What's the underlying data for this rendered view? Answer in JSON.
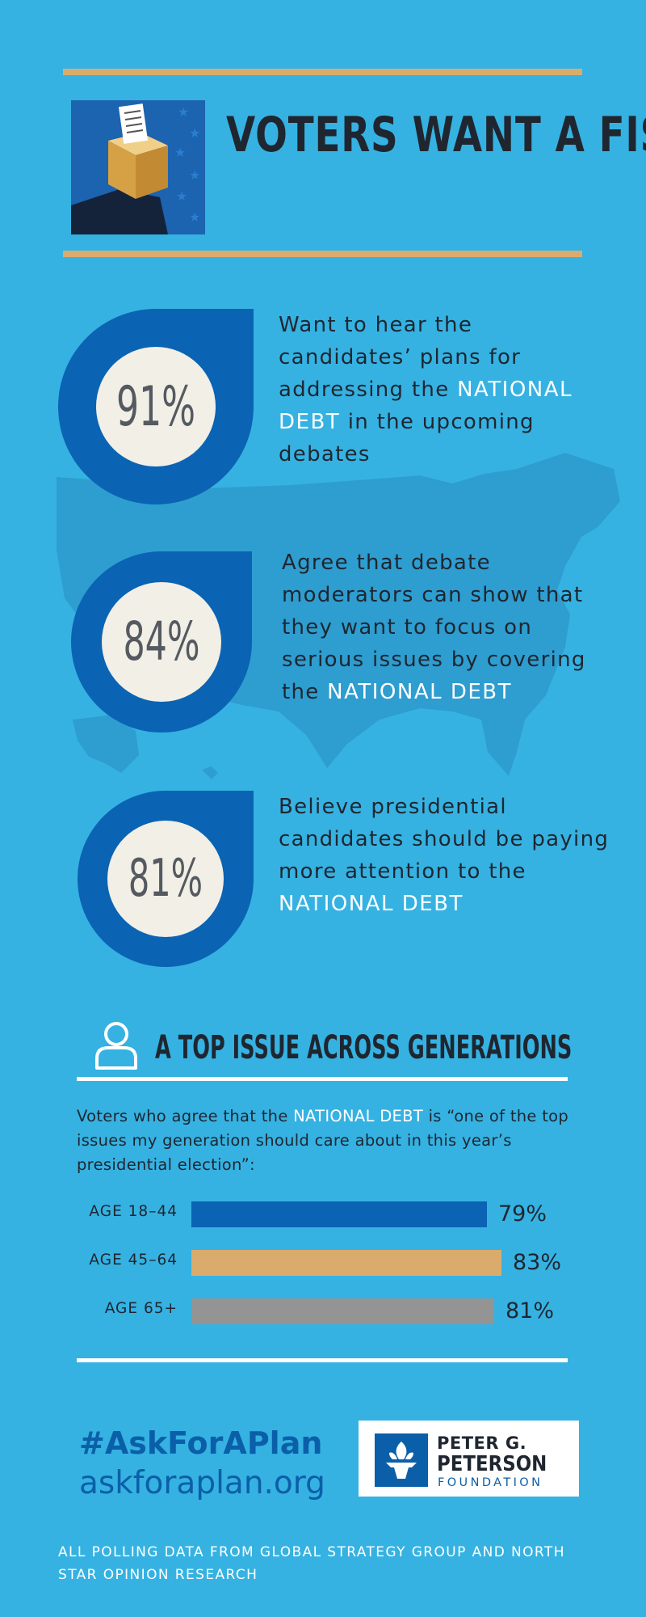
{
  "header": {
    "title": "VOTERS WANT A FISCAL PLAN",
    "ballot_icon": "ballot-box-icon"
  },
  "stats": [
    {
      "percent": "91%",
      "text_before": "Want to hear the candidates’ plans for addressing the ",
      "highlight": "NATIONAL DEBT",
      "text_after": " in the upcoming debates"
    },
    {
      "percent": "84%",
      "text_before": "Agree that debate moderators can show that they want to focus on serious issues by covering the ",
      "highlight": "NATIONAL DEBT",
      "text_after": ""
    },
    {
      "percent": "81%",
      "text_before": "Believe presidential candidates should be paying more attention to the ",
      "highlight": "NATIONAL DEBT",
      "text_after": ""
    }
  ],
  "generations": {
    "title": "A TOP ISSUE ACROSS GENERATIONS",
    "icon": "person-icon",
    "intro_before": "Voters who agree that the ",
    "intro_highlight": "NATIONAL DEBT",
    "intro_after": " is “one of the top issues my generation should care about in this year’s presidential election”:"
  },
  "chart_data": {
    "type": "bar",
    "categories": [
      "AGE 18–44",
      "AGE 45–64",
      "AGE 65+"
    ],
    "values": [
      79,
      83,
      81
    ],
    "value_labels": [
      "79%",
      "83%",
      "81%"
    ],
    "colors": [
      "#0b63b3",
      "#d9ac6d",
      "#949494"
    ],
    "title": "",
    "xlabel": "",
    "ylabel": ""
  },
  "footer": {
    "hashtag": "#AskForAPlan",
    "url": "askforaplan.org",
    "logo_line1": "PETER G.",
    "logo_line2": "PETERSON",
    "logo_line3": "FOUNDATION",
    "logo_icon": "torch-icon",
    "source_note": "ALL POLLING DATA FROM GLOBAL STRATEGY GROUP AND NORTH STAR OPINION RESEARCH"
  },
  "colors": {
    "background": "#35b2e2",
    "highlight": "#ffffff",
    "gold": "#d9ac6d",
    "dark_blue": "#0b63b3",
    "text": "#1f2630"
  }
}
